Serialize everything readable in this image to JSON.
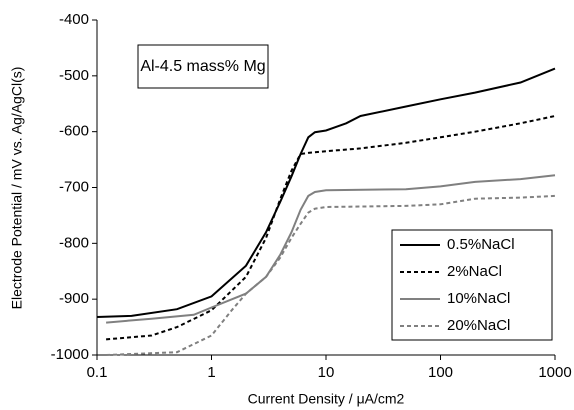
{
  "chart_data": {
    "type": "line",
    "xlabel": "Current Density / μA/cm2",
    "ylabel": "Electrode Potential / mV vs. Ag/AgCl(s)",
    "annotation": "Al-4.5 mass% Mg",
    "xscale": "log",
    "xlim": [
      0.1,
      1000
    ],
    "xticks": [
      0.1,
      1,
      10,
      100,
      1000
    ],
    "ylim": [
      -1000,
      -400
    ],
    "yticks": [
      -1000,
      -900,
      -800,
      -700,
      -600,
      -500,
      -400
    ],
    "grid": false,
    "legend": "lower right",
    "series": [
      {
        "name": "0.5%NaCl",
        "color": "#000000",
        "linestyle": "solid",
        "x": [
          0.1,
          0.2,
          0.5,
          1,
          2,
          3,
          4,
          5,
          6,
          7,
          8,
          10,
          15,
          20,
          50,
          100,
          200,
          500,
          1000
        ],
        "values": [
          -932,
          -930,
          -918,
          -895,
          -840,
          -780,
          -725,
          -680,
          -640,
          -610,
          -601,
          -598,
          -585,
          -572,
          -555,
          -542,
          -530,
          -512,
          -487
        ]
      },
      {
        "name": "2%NaCl",
        "color": "#000000",
        "linestyle": "dashed",
        "x": [
          0.12,
          0.3,
          0.5,
          1,
          2,
          3,
          4,
          5,
          6,
          7,
          10,
          20,
          50,
          100,
          200,
          500,
          1000
        ],
        "values": [
          -972,
          -965,
          -950,
          -920,
          -860,
          -790,
          -720,
          -670,
          -640,
          -638,
          -635,
          -630,
          -620,
          -610,
          -600,
          -585,
          -572
        ]
      },
      {
        "name": "10%NaCl",
        "color": "#808080",
        "linestyle": "solid",
        "x": [
          0.12,
          0.3,
          0.7,
          1,
          2,
          3,
          4,
          5,
          6,
          7,
          8,
          10,
          50,
          100,
          200,
          500,
          1000
        ],
        "values": [
          -942,
          -935,
          -928,
          -915,
          -890,
          -860,
          -820,
          -780,
          -740,
          -715,
          -708,
          -705,
          -703,
          -698,
          -690,
          -685,
          -678
        ]
      },
      {
        "name": "20%NaCl",
        "color": "#808080",
        "linestyle": "dashed",
        "x": [
          0.12,
          0.5,
          1,
          1.5,
          2,
          3,
          4,
          5,
          6,
          7,
          8,
          10,
          50,
          100,
          200,
          500,
          1000
        ],
        "values": [
          -1000,
          -995,
          -965,
          -920,
          -890,
          -860,
          -825,
          -790,
          -765,
          -745,
          -738,
          -735,
          -733,
          -730,
          -720,
          -718,
          -715
        ]
      }
    ]
  }
}
